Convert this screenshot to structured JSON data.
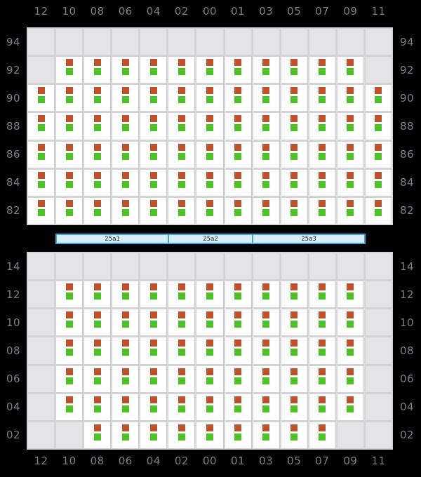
{
  "colors": {
    "background": "#000000",
    "label": "#7e7f87",
    "grid_line": "#d4d4d8",
    "cell_empty": "#e4e4e7",
    "cell_filled": "#ffffff",
    "square_top": "#c0512a",
    "square_bottom": "#4ac424",
    "bar_fill": "#d9ecf9",
    "bar_border": "#42a5de",
    "bar_text": "#2a2a2a"
  },
  "column_labels": [
    "12",
    "10",
    "08",
    "06",
    "04",
    "02",
    "00",
    "01",
    "03",
    "05",
    "07",
    "09",
    "11"
  ],
  "upper_deck": {
    "row_labels": [
      "94",
      "92",
      "90",
      "88",
      "86",
      "84",
      "82"
    ],
    "rows": [
      {
        "label": "94",
        "cells": [
          0,
          0,
          0,
          0,
          0,
          0,
          0,
          0,
          0,
          0,
          0,
          0,
          0
        ]
      },
      {
        "label": "92",
        "cells": [
          0,
          1,
          1,
          1,
          1,
          1,
          1,
          1,
          1,
          1,
          1,
          1,
          0
        ]
      },
      {
        "label": "90",
        "cells": [
          1,
          1,
          1,
          1,
          1,
          1,
          1,
          1,
          1,
          1,
          1,
          1,
          1
        ]
      },
      {
        "label": "88",
        "cells": [
          1,
          1,
          1,
          1,
          1,
          1,
          1,
          1,
          1,
          1,
          1,
          1,
          1
        ]
      },
      {
        "label": "86",
        "cells": [
          1,
          1,
          1,
          1,
          1,
          1,
          1,
          1,
          1,
          1,
          1,
          1,
          1
        ]
      },
      {
        "label": "84",
        "cells": [
          1,
          1,
          1,
          1,
          1,
          1,
          1,
          1,
          1,
          1,
          1,
          1,
          1
        ]
      },
      {
        "label": "82",
        "cells": [
          1,
          1,
          1,
          1,
          1,
          1,
          1,
          1,
          1,
          1,
          1,
          1,
          1
        ]
      }
    ]
  },
  "corridor": {
    "segments": [
      {
        "label": "25a1"
      },
      {
        "label": "25a2"
      },
      {
        "label": "25a3"
      }
    ]
  },
  "lower_deck": {
    "row_labels": [
      "14",
      "12",
      "10",
      "08",
      "06",
      "04",
      "02"
    ],
    "rows": [
      {
        "label": "14",
        "cells": [
          0,
          0,
          0,
          0,
          0,
          0,
          0,
          0,
          0,
          0,
          0,
          0,
          0
        ]
      },
      {
        "label": "12",
        "cells": [
          0,
          1,
          1,
          1,
          1,
          1,
          1,
          1,
          1,
          1,
          1,
          1,
          0
        ]
      },
      {
        "label": "10",
        "cells": [
          0,
          1,
          1,
          1,
          1,
          1,
          1,
          1,
          1,
          1,
          1,
          1,
          0
        ]
      },
      {
        "label": "08",
        "cells": [
          0,
          1,
          1,
          1,
          1,
          1,
          1,
          1,
          1,
          1,
          1,
          1,
          0
        ]
      },
      {
        "label": "06",
        "cells": [
          0,
          1,
          1,
          1,
          1,
          1,
          1,
          1,
          1,
          1,
          1,
          1,
          0
        ]
      },
      {
        "label": "04",
        "cells": [
          0,
          1,
          1,
          1,
          1,
          1,
          1,
          1,
          1,
          1,
          1,
          1,
          0
        ]
      },
      {
        "label": "02",
        "cells": [
          0,
          0,
          1,
          1,
          1,
          1,
          1,
          1,
          1,
          1,
          1,
          0,
          0
        ]
      }
    ]
  },
  "legend": {
    "square_top_meaning": "orange-berth-indicator",
    "square_bottom_meaning": "green-berth-indicator"
  }
}
